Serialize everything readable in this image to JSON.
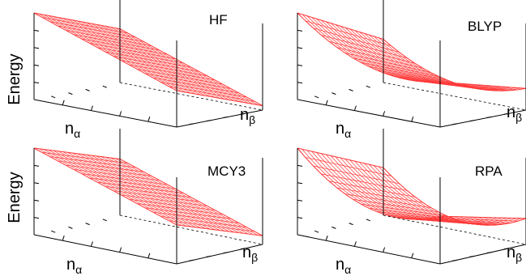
{
  "colors": {
    "surface": "#ff3b3b",
    "axes": "#000000"
  },
  "chart_data": [
    {
      "type": "surface",
      "title": "HF",
      "ylabel": "Energy",
      "xlabel": {
        "base": "n",
        "sub": "α"
      },
      "zlabel": {
        "base": "n",
        "sub": "β"
      },
      "x_range": [
        0,
        1
      ],
      "y_range": [
        0,
        1
      ],
      "shape": "planar",
      "z_corners": {
        "x0y0": 1.0,
        "x1y0": 0.42,
        "x0y1": 0.62,
        "x1y1": 0.05
      },
      "grid": true
    },
    {
      "type": "surface",
      "title": "BLYP",
      "ylabel": "",
      "xlabel": {
        "base": "n",
        "sub": "α"
      },
      "zlabel": {
        "base": "n",
        "sub": "β"
      },
      "x_range": [
        0,
        1
      ],
      "y_range": [
        0,
        1
      ],
      "shape": "curved",
      "z_corners": {
        "x0y0": 1.0,
        "x1y0": 0.52,
        "x0y1": 0.5,
        "x1y1": 0.25
      },
      "curvature": 0.22,
      "grid": true
    },
    {
      "type": "surface",
      "title": "MCY3",
      "ylabel": "Energy",
      "xlabel": {
        "base": "n",
        "sub": "α"
      },
      "zlabel": {
        "base": "n",
        "sub": "β"
      },
      "x_range": [
        0,
        1
      ],
      "y_range": [
        0,
        1
      ],
      "shape": "planar",
      "z_corners": {
        "x0y0": 1.0,
        "x1y0": 0.45,
        "x0y1": 0.65,
        "x1y1": 0.1
      },
      "grid": true
    },
    {
      "type": "surface",
      "title": "RPA",
      "ylabel": "",
      "xlabel": {
        "base": "n",
        "sub": "α"
      },
      "zlabel": {
        "base": "n",
        "sub": "β"
      },
      "x_range": [
        0,
        1
      ],
      "y_range": [
        0,
        1
      ],
      "shape": "curved",
      "z_corners": {
        "x0y0": 1.0,
        "x1y0": 0.55,
        "x0y1": 0.55,
        "x1y1": 0.3
      },
      "curvature": 0.3,
      "grid": true
    }
  ]
}
